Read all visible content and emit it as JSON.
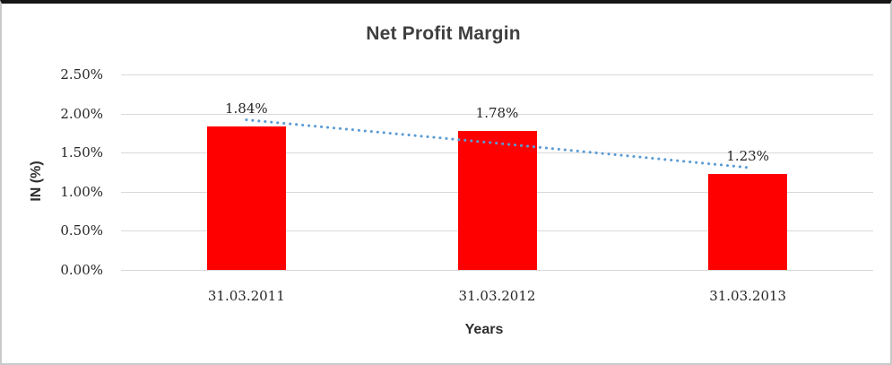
{
  "chart": {
    "title": "Net Profit Margin",
    "x_axis_title": "Years",
    "y_axis_title": "IN (%)"
  },
  "chart_data": {
    "type": "bar",
    "title": "Net Profit Margin",
    "xlabel": "Years",
    "ylabel": "IN (%)",
    "categories": [
      "31.03.2011",
      "31.03.2012",
      "31.03.2013"
    ],
    "values": [
      1.84,
      1.78,
      1.23
    ],
    "data_labels": [
      "1.84%",
      "1.78%",
      "1.23%"
    ],
    "ylim": [
      0,
      2.5
    ],
    "y_tick_step": 0.5,
    "y_tick_labels": [
      "0.00%",
      "0.50%",
      "1.00%",
      "1.50%",
      "2.00%",
      "2.50%"
    ],
    "grid": true,
    "legend": "none",
    "bar_color": "#ff0000",
    "trendline": {
      "type": "linear",
      "style": "dotted",
      "color": "#5b9bd5",
      "values": [
        1.92,
        1.62,
        1.31
      ]
    }
  },
  "colors": {
    "bar": "#ff0000",
    "trendline": "#5b9bd5",
    "gridline": "#d9d9d9",
    "title_text": "#3f3f3f",
    "tick_text": "#262626",
    "frame_top_border": "#161616",
    "frame_side_border": "#c9c9c9"
  }
}
